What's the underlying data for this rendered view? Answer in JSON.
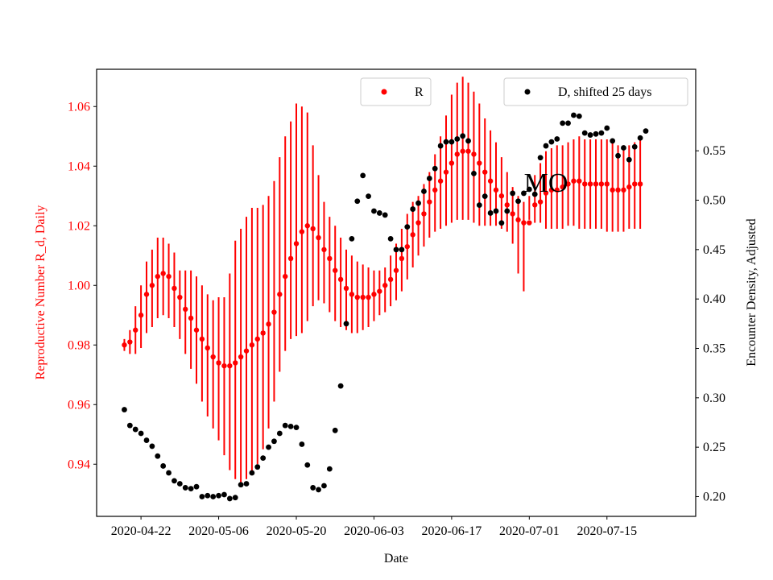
{
  "chart_data": {
    "type": "scatter",
    "title": "",
    "annotation": "MO",
    "xlabel": "Date",
    "ylabel_left": "Reproductive Number R_d, Daily",
    "ylabel_right": "Encounter Density, Adjusted",
    "x_ticks": [
      "2020-04-22",
      "2020-05-06",
      "2020-05-20",
      "2020-06-03",
      "2020-06-17",
      "2020-07-01",
      "2020-07-15"
    ],
    "y_left_ticks": [
      "0.94",
      "0.96",
      "0.98",
      "1.00",
      "1.02",
      "1.04",
      "1.06"
    ],
    "y_right_ticks": [
      "0.20",
      "0.25",
      "0.30",
      "0.35",
      "0.40",
      "0.45",
      "0.50",
      "0.55"
    ],
    "x_range": [
      "2020-04-14",
      "2020-07-31"
    ],
    "y_left_range": [
      0.9225,
      1.0725
    ],
    "y_right_range": [
      0.18,
      0.6325
    ],
    "grid": false,
    "colors": {
      "R": "#ff0000",
      "D": "#000000",
      "left_axis_text": "#ff0000",
      "right_axis_text": "#000000"
    },
    "legend_R": {
      "label": "R",
      "placement": "top-center"
    },
    "legend_D": {
      "label": "D, shifted 25 days",
      "placement": "top-right"
    },
    "series": [
      {
        "name": "R",
        "axis": "left",
        "start_date": "2020-04-19",
        "values": [
          0.98,
          0.981,
          0.985,
          0.99,
          0.997,
          1.0,
          1.003,
          1.004,
          1.003,
          0.999,
          0.996,
          0.992,
          0.989,
          0.985,
          0.982,
          0.979,
          0.976,
          0.974,
          0.973,
          0.973,
          0.974,
          0.976,
          0.978,
          0.98,
          0.982,
          0.984,
          0.987,
          0.991,
          0.997,
          1.003,
          1.009,
          1.014,
          1.018,
          1.02,
          1.019,
          1.016,
          1.012,
          1.009,
          1.005,
          1.002,
          0.999,
          0.997,
          0.996,
          0.996,
          0.996,
          0.997,
          0.998,
          1.0,
          1.002,
          1.005,
          1.009,
          1.013,
          1.017,
          1.021,
          1.024,
          1.028,
          1.032,
          1.035,
          1.038,
          1.041,
          1.044,
          1.045,
          1.045,
          1.044,
          1.041,
          1.038,
          1.035,
          1.032,
          1.03,
          1.027,
          1.024,
          1.022,
          1.021,
          1.021,
          1.027,
          1.028,
          1.031,
          1.032,
          1.032,
          1.033,
          1.034,
          1.035,
          1.035,
          1.034,
          1.034,
          1.034,
          1.034,
          1.034,
          1.032,
          1.032,
          1.032,
          1.033,
          1.034,
          1.034
        ],
        "lower": [
          0.978,
          0.977,
          0.977,
          0.979,
          0.984,
          0.986,
          0.989,
          0.99,
          0.989,
          0.986,
          0.982,
          0.977,
          0.972,
          0.967,
          0.961,
          0.956,
          0.952,
          0.948,
          0.943,
          0.938,
          0.935,
          0.934,
          0.935,
          0.937,
          0.94,
          0.945,
          0.952,
          0.961,
          0.971,
          0.978,
          0.982,
          0.983,
          0.984,
          0.988,
          0.993,
          0.995,
          0.994,
          0.991,
          0.988,
          0.986,
          0.985,
          0.984,
          0.984,
          0.985,
          0.986,
          0.988,
          0.99,
          0.991,
          0.993,
          0.995,
          0.998,
          1.002,
          1.006,
          1.01,
          1.013,
          1.016,
          1.018,
          1.019,
          1.02,
          1.021,
          1.022,
          1.022,
          1.022,
          1.021,
          1.02,
          1.02,
          1.02,
          1.02,
          1.019,
          1.018,
          1.014,
          1.004,
          0.998,
          1.022,
          1.021,
          1.021,
          1.019,
          1.019,
          1.019,
          1.019,
          1.02,
          1.02,
          1.019,
          1.019,
          1.019,
          1.019,
          1.019,
          1.018,
          1.018,
          1.018,
          1.018,
          1.019,
          1.019,
          1.019
        ],
        "upper": [
          0.982,
          0.985,
          0.993,
          1.0,
          1.008,
          1.012,
          1.016,
          1.016,
          1.014,
          1.011,
          1.005,
          1.005,
          1.005,
          1.003,
          1.0,
          0.997,
          0.995,
          0.996,
          0.996,
          1.004,
          1.015,
          1.019,
          1.023,
          1.026,
          1.026,
          1.027,
          1.03,
          1.035,
          1.043,
          1.05,
          1.055,
          1.061,
          1.06,
          1.058,
          1.047,
          1.037,
          1.028,
          1.023,
          1.02,
          1.016,
          1.012,
          1.01,
          1.008,
          1.007,
          1.006,
          1.005,
          1.005,
          1.006,
          1.01,
          1.014,
          1.019,
          1.024,
          1.028,
          1.03,
          1.034,
          1.038,
          1.044,
          1.05,
          1.057,
          1.064,
          1.068,
          1.07,
          1.068,
          1.065,
          1.061,
          1.056,
          1.052,
          1.048,
          1.043,
          1.038,
          1.033,
          1.03,
          1.028,
          1.03,
          1.037,
          1.041,
          1.045,
          1.046,
          1.047,
          1.047,
          1.048,
          1.049,
          1.05,
          1.049,
          1.049,
          1.049,
          1.049,
          1.049,
          1.048,
          1.047,
          1.047,
          1.047,
          1.048,
          1.049
        ]
      },
      {
        "name": "D, shifted 25 days",
        "axis": "right",
        "start_date": "2020-04-19",
        "values": [
          0.288,
          0.272,
          0.268,
          0.264,
          0.257,
          0.251,
          0.241,
          0.231,
          0.224,
          0.216,
          0.213,
          0.209,
          0.208,
          0.21,
          0.2,
          0.201,
          0.2,
          0.201,
          0.202,
          0.198,
          0.199,
          0.212,
          0.213,
          0.224,
          0.23,
          0.239,
          0.25,
          0.256,
          0.264,
          0.272,
          0.271,
          0.27,
          0.253,
          0.232,
          0.209,
          0.207,
          0.211,
          0.228,
          0.267,
          0.312,
          0.375,
          0.461,
          0.499,
          0.525,
          0.504,
          0.489,
          0.487,
          0.485,
          0.461,
          0.45,
          0.45,
          0.473,
          0.491,
          0.497,
          0.509,
          0.522,
          0.532,
          0.555,
          0.559,
          0.559,
          0.562,
          0.565,
          0.56,
          0.527,
          0.495,
          0.504,
          0.487,
          0.489,
          0.477,
          0.489,
          0.507,
          0.499,
          0.507,
          0.511,
          0.506,
          0.543,
          0.555,
          0.559,
          0.562,
          0.578,
          0.578,
          0.586,
          0.585,
          0.568,
          0.566,
          0.567,
          0.568,
          0.573,
          0.56,
          0.545,
          0.553,
          0.541,
          0.554,
          0.563,
          0.57
        ]
      }
    ]
  }
}
